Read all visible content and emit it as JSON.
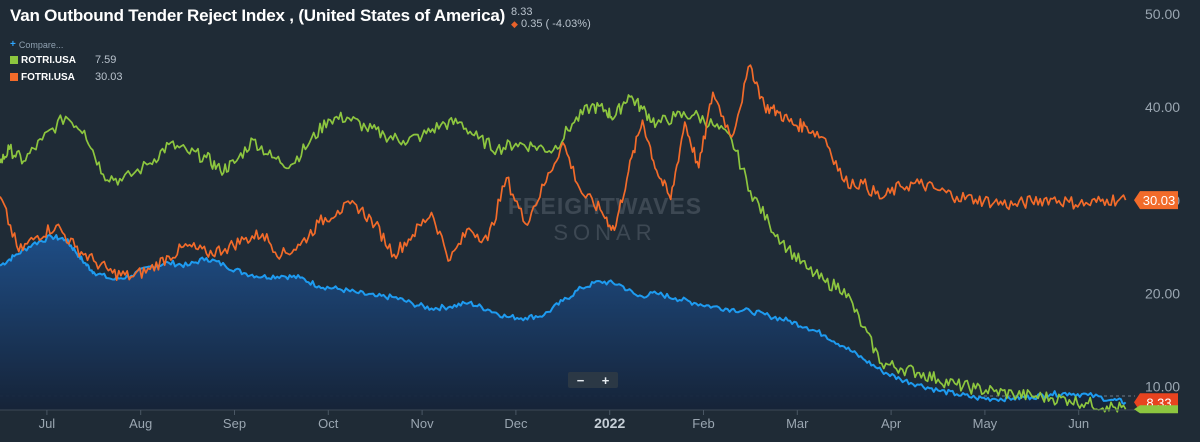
{
  "header": {
    "title": "Van Outbound Tender Reject Index , (United States of America)",
    "last_value": "8.33",
    "change": "0.35 ( -4.03%)"
  },
  "legend": {
    "compare_label": "Compare...",
    "items": [
      {
        "ticker": "ROTRI.USA",
        "value": "7.59",
        "color": "#8dc63f"
      },
      {
        "ticker": "FOTRI.USA",
        "value": "30.03",
        "color": "#f26b2a"
      }
    ]
  },
  "watermark": {
    "line1": "FREIGHTWAVES",
    "line2": "SONAR"
  },
  "zoom": {
    "minus": "−",
    "plus": "+"
  },
  "chart_data": {
    "type": "line",
    "y_axis": {
      "side": "right",
      "range": [
        7.5,
        51.5
      ],
      "ticks": [
        "10.00",
        "20.00",
        "30.00",
        "40.00",
        "50.00"
      ]
    },
    "x_axis": {
      "range": [
        0,
        12.1
      ],
      "tick_labels": [
        "Jul",
        "Aug",
        "Sep",
        "Oct",
        "Nov",
        "Dec",
        "2022",
        "Feb",
        "Mar",
        "Apr",
        "May",
        "Jun"
      ],
      "tick_positions": [
        0.5,
        1.5,
        2.5,
        3.5,
        4.5,
        5.5,
        6.5,
        7.5,
        8.5,
        9.5,
        10.5,
        11.5
      ]
    },
    "grid": false,
    "series": [
      {
        "name": "Van Outbound Tender Reject Index",
        "color": "#1e9bf0",
        "style": "area",
        "x": [
          0,
          0.15,
          0.35,
          0.55,
          0.7,
          0.8,
          0.9,
          1.0,
          1.2,
          1.4,
          1.6,
          1.8,
          2.0,
          2.2,
          2.4,
          2.6,
          2.8,
          3.0,
          3.2,
          3.4,
          3.6,
          3.8,
          4.0,
          4.2,
          4.4,
          4.6,
          4.8,
          5.0,
          5.2,
          5.4,
          5.6,
          5.8,
          6.0,
          6.2,
          6.4,
          6.6,
          6.8,
          7.0,
          7.2,
          7.4,
          7.6,
          7.8,
          8.0,
          8.2,
          8.4,
          8.6,
          8.8,
          9.0,
          9.2,
          9.4,
          9.6,
          9.8,
          10.0,
          10.2,
          10.4,
          10.6,
          10.8,
          11.0,
          11.2,
          11.4,
          11.6,
          11.85,
          12.0
        ],
        "y": [
          23.0,
          24.0,
          25.3,
          26.1,
          25.8,
          24.6,
          23.3,
          22.3,
          21.5,
          21.9,
          22.9,
          23.3,
          23.0,
          23.8,
          23.0,
          22.2,
          21.8,
          21.9,
          21.7,
          20.8,
          20.5,
          20.1,
          19.7,
          19.6,
          18.9,
          18.4,
          18.6,
          19.0,
          18.3,
          17.5,
          17.4,
          17.7,
          19.2,
          20.6,
          21.3,
          21.0,
          19.7,
          20.0,
          19.5,
          19.0,
          18.6,
          18.3,
          18.1,
          17.6,
          17.1,
          16.4,
          15.5,
          14.3,
          13.0,
          11.7,
          10.8,
          10.2,
          9.6,
          9.2,
          8.8,
          8.7,
          8.75,
          8.9,
          9.2,
          9.3,
          9.1,
          8.6,
          8.33
        ]
      },
      {
        "name": "ROTRI.USA",
        "color": "#8dc63f",
        "style": "line",
        "x": [
          0,
          0.1,
          0.25,
          0.45,
          0.7,
          0.9,
          1.1,
          1.3,
          1.6,
          1.8,
          2.0,
          2.2,
          2.35,
          2.5,
          2.7,
          2.9,
          3.1,
          3.3,
          3.5,
          3.7,
          3.9,
          4.1,
          4.3,
          4.5,
          4.7,
          4.9,
          5.1,
          5.3,
          5.5,
          5.7,
          5.9,
          6.1,
          6.3,
          6.45,
          6.55,
          6.7,
          6.85,
          7.0,
          7.2,
          7.4,
          7.6,
          7.8,
          8.0,
          8.2,
          8.4,
          8.6,
          8.8,
          9.0,
          9.2,
          9.4,
          9.6,
          9.8,
          10.0,
          10.2,
          10.4,
          10.6,
          10.8,
          11.0,
          11.2,
          11.4,
          11.6,
          11.8,
          12.0
        ],
        "y": [
          34.0,
          35.5,
          34.2,
          36.5,
          39.0,
          37.5,
          32.8,
          32.1,
          34.0,
          36.0,
          35.2,
          34.6,
          33.2,
          34.0,
          36.5,
          34.6,
          33.8,
          36.2,
          38.7,
          38.9,
          37.8,
          37.0,
          36.4,
          36.9,
          38.1,
          38.4,
          36.6,
          35.5,
          36.1,
          35.8,
          35.4,
          38.2,
          40.1,
          39.7,
          38.9,
          41.3,
          39.8,
          38.2,
          39.0,
          39.2,
          38.1,
          36.5,
          31.0,
          27.5,
          24.8,
          22.7,
          21.2,
          20.5,
          16.4,
          12.5,
          12.0,
          11.5,
          10.8,
          10.2,
          9.8,
          9.5,
          9.2,
          9.0,
          8.8,
          8.6,
          8.2,
          7.9,
          7.59
        ]
      },
      {
        "name": "FOTRI.USA",
        "color": "#f26b2a",
        "style": "line",
        "x": [
          0,
          0.2,
          0.4,
          0.6,
          0.8,
          1.0,
          1.2,
          1.4,
          1.6,
          1.8,
          2.0,
          2.2,
          2.4,
          2.6,
          2.8,
          3.0,
          3.2,
          3.4,
          3.6,
          3.8,
          4.0,
          4.2,
          4.4,
          4.6,
          4.8,
          5.0,
          5.2,
          5.4,
          5.6,
          5.8,
          6.0,
          6.2,
          6.4,
          6.55,
          6.7,
          6.85,
          7.0,
          7.15,
          7.3,
          7.45,
          7.6,
          7.8,
          8.0,
          8.15,
          8.3,
          8.45,
          8.6,
          8.8,
          9.0,
          9.2,
          9.4,
          9.6,
          9.8,
          10.0,
          10.2,
          10.4,
          10.6,
          10.8,
          11.0,
          11.2,
          11.4,
          11.6,
          11.8,
          12.0
        ],
        "y": [
          30.4,
          24.5,
          26.2,
          27.3,
          25.0,
          23.5,
          22.2,
          21.8,
          22.6,
          24.0,
          25.1,
          24.3,
          24.8,
          25.8,
          26.4,
          24.1,
          25.2,
          27.6,
          28.9,
          29.5,
          27.4,
          24.2,
          26.3,
          28.7,
          23.6,
          27.0,
          25.7,
          32.4,
          27.5,
          31.6,
          36.2,
          30.8,
          29.0,
          26.8,
          33.1,
          38.6,
          33.2,
          30.1,
          38.4,
          33.5,
          41.6,
          36.8,
          44.5,
          40.1,
          39.4,
          38.2,
          37.9,
          36.6,
          32.0,
          31.8,
          30.2,
          31.5,
          31.8,
          31.1,
          30.4,
          30.1,
          29.8,
          29.5,
          29.9,
          30.2,
          29.8,
          29.6,
          30.1,
          30.03
        ]
      }
    ],
    "last_value_labels": [
      {
        "series": "FOTRI.USA",
        "value": "30.03",
        "color": "#f26b2a"
      },
      {
        "series": "Van Outbound Tender Reject Index",
        "value": "8.33",
        "color": "#e8431f"
      }
    ]
  }
}
